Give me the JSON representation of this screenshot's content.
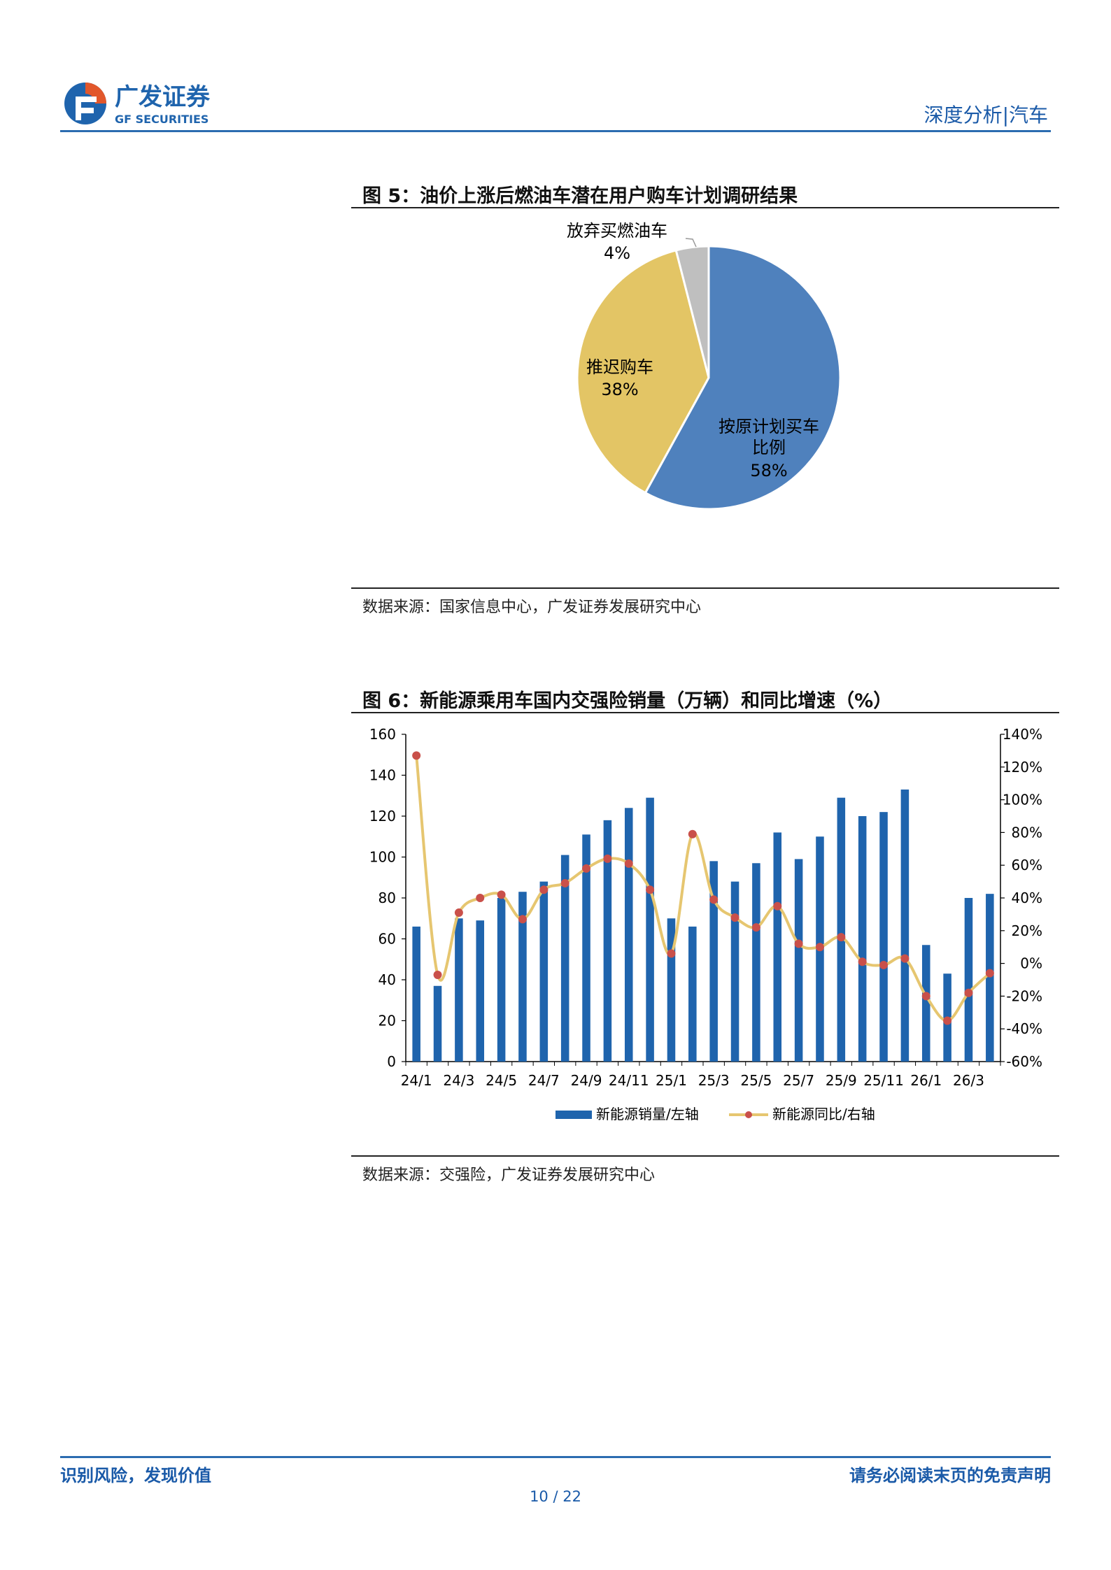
{
  "header": {
    "logo_cn": "广发证券",
    "logo_en": "GF SECURITIES",
    "tag": "深度分析|汽车"
  },
  "figure5": {
    "title": "图 5：油价上涨后燃油车潜在用户购车计划调研结果",
    "source": "数据来源：国家信息中心，广发证券发展研究中心"
  },
  "figure6": {
    "title": "图 6：新能源乘用车国内交强险销量（万辆）和同比增速（%）",
    "source": "数据来源：交强险，广发证券发展研究中心"
  },
  "chart_data": [
    {
      "type": "pie",
      "slices": [
        {
          "label": "按原计划买车比例",
          "value": 58,
          "value_text": "58%",
          "color": "#4f81bd"
        },
        {
          "label": "推迟购车",
          "value": 38,
          "value_text": "38%",
          "color": "#e3c565"
        },
        {
          "label": "放弃买燃油车",
          "value": 4,
          "value_text": "4%",
          "color": "#bfbfbf"
        }
      ]
    },
    {
      "type": "bar",
      "categories": [
        "24/1",
        "24/2",
        "24/3",
        "24/4",
        "24/5",
        "24/6",
        "24/7",
        "24/8",
        "24/9",
        "24/10",
        "24/11",
        "24/12",
        "25/1",
        "25/2",
        "25/3",
        "25/4",
        "25/5",
        "25/6",
        "25/7",
        "25/8",
        "25/9",
        "25/10",
        "25/11",
        "25/12",
        "26/1",
        "26/2",
        "26/3",
        "26/4"
      ],
      "x_tick_labels": [
        "24/1",
        "24/3",
        "24/5",
        "24/7",
        "24/9",
        "24/11",
        "25/1",
        "25/3",
        "25/5",
        "25/7",
        "25/9",
        "25/11",
        "26/1",
        "26/3"
      ],
      "series": [
        {
          "name": "新能源销量/左轴",
          "type": "bar",
          "axis": "left",
          "color": "#1f64ad",
          "values": [
            66,
            37,
            70,
            69,
            80,
            83,
            88,
            101,
            111,
            118,
            124,
            129,
            70,
            66,
            98,
            88,
            97,
            112,
            99,
            110,
            129,
            120,
            122,
            133,
            57,
            43,
            80,
            82
          ]
        },
        {
          "name": "新能源同比/右轴",
          "type": "line",
          "axis": "right",
          "color": "#e6c670",
          "marker_color": "#c9504a",
          "values": [
            127,
            -7,
            31,
            40,
            42,
            27,
            45,
            49,
            58,
            64,
            61,
            45,
            6,
            79,
            39,
            28,
            22,
            35,
            12,
            10,
            16,
            1,
            -1,
            3,
            -20,
            -35,
            -18,
            -6
          ]
        }
      ],
      "left_axis": {
        "ylim": [
          0,
          160
        ],
        "ticks": [
          0,
          20,
          40,
          60,
          80,
          100,
          120,
          140,
          160
        ]
      },
      "right_axis": {
        "ylim": [
          -60,
          140
        ],
        "ticks": [
          -60,
          -40,
          -20,
          0,
          20,
          40,
          60,
          80,
          100,
          120,
          140
        ],
        "tick_suffix": "%"
      },
      "legend": "bottom"
    }
  ],
  "footer": {
    "left": "识别风险，发现价值",
    "right": "请务必阅读末页的免责声明",
    "page": "10 / 22"
  }
}
